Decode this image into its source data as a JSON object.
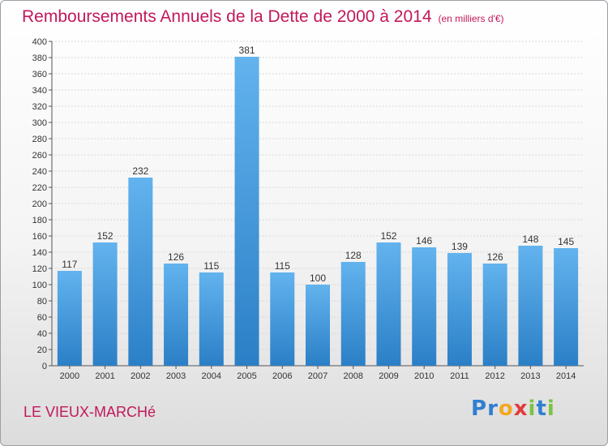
{
  "title": "Remboursements Annuels de la Dette de 2000 à 2014",
  "unit": "(en milliers d'€)",
  "commune": "LE VIEUX-MARCHé",
  "logo": {
    "letters": [
      "P",
      "r",
      "o",
      "x",
      "i",
      "t",
      "i"
    ],
    "colors": [
      "#2f7fd0",
      "#2f7fd0",
      "#f5a623",
      "#e23b3b",
      "#7cc242",
      "#2f7fd0",
      "#7cc242"
    ]
  },
  "colors": {
    "bar_light": "#62b3ee",
    "bar_dark": "#2b7fc6",
    "title": "#c2185b",
    "axis": "#555555",
    "grid": "#d9d9d9"
  },
  "chart_data": {
    "type": "bar",
    "categories": [
      "2000",
      "2001",
      "2002",
      "2003",
      "2004",
      "2005",
      "2006",
      "2007",
      "2008",
      "2009",
      "2010",
      "2011",
      "2012",
      "2013",
      "2014"
    ],
    "values": [
      117,
      152,
      232,
      126,
      115,
      381,
      115,
      100,
      128,
      152,
      146,
      139,
      126,
      148,
      145
    ],
    "title": "Remboursements Annuels de la Dette de 2000 à 2014",
    "xlabel": "",
    "ylabel": "",
    "ylim": [
      0,
      400
    ],
    "ytick_step": 20,
    "grid": true,
    "data_labels": true
  }
}
